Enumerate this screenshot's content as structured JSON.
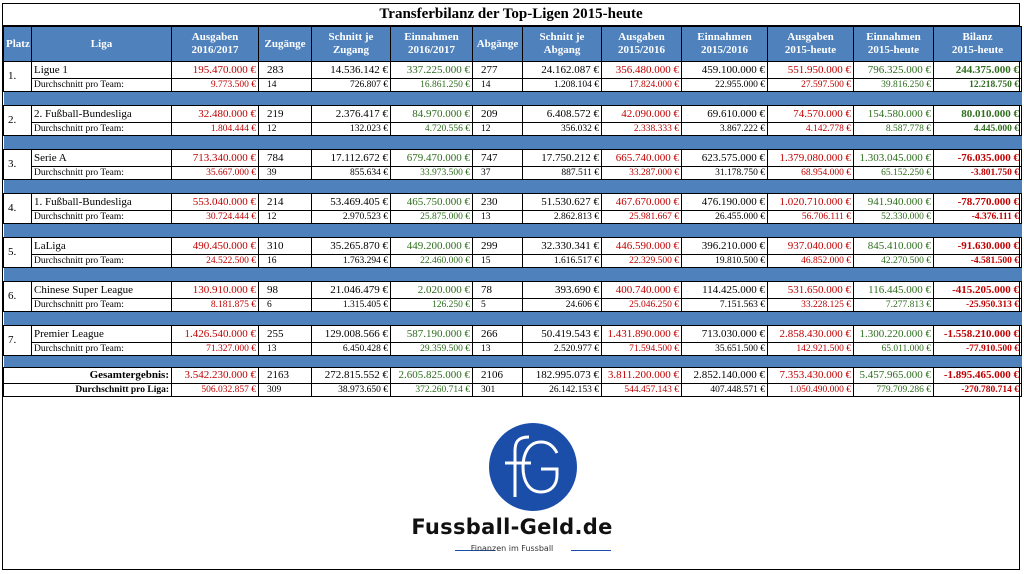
{
  "title": "Transferbilanz der Top-Ligen 2015-heute",
  "headers": {
    "platz": "Platz",
    "liga": "Liga",
    "ausgaben_1617": [
      "Ausgaben",
      "2016/2017"
    ],
    "zugaenge": "Zugänge",
    "schnitt_zugang": [
      "Schnitt je",
      "Zugang"
    ],
    "einnahmen_1617": [
      "Einnahmen",
      "2016/2017"
    ],
    "abgaenge": "Abgänge",
    "schnitt_abgang": [
      "Schnitt je",
      "Abgang"
    ],
    "ausgaben_1516": [
      "Ausgaben",
      "2015/2016"
    ],
    "einnahmen_1516": [
      "Einnahmen",
      "2015/2016"
    ],
    "ausgaben_heute": [
      "Ausgaben",
      "2015-heute"
    ],
    "einnahmen_heute": [
      "Einnahmen",
      "2015-heute"
    ],
    "bilanz": [
      "Bilanz",
      "2015-heute"
    ]
  },
  "avg_label": "Durchschnitt pro Team:",
  "rows": [
    {
      "platz": "1.",
      "liga": "Ligue 1",
      "main": [
        "195.470.000 €",
        "283",
        "14.536.142 €",
        "337.225.000 €",
        "277",
        "24.162.087 €",
        "356.480.000 €",
        "459.100.000 €",
        "551.950.000 €",
        "796.325.000 €",
        "244.375.000 €"
      ],
      "avg": [
        "9.773.500 €",
        "14",
        "726.807 €",
        "16.861.250 €",
        "14",
        "1.208.104 €",
        "17.824.000 €",
        "22.955.000 €",
        "27.597.500 €",
        "39.816.250 €",
        "12.218.750 €"
      ],
      "bilanz_sign": "pos"
    },
    {
      "platz": "2.",
      "liga": "2. Fußball-Bundesliga",
      "main": [
        "32.480.000 €",
        "219",
        "2.376.417 €",
        "84.970.000 €",
        "209",
        "6.408.572 €",
        "42.090.000 €",
        "69.610.000 €",
        "74.570.000 €",
        "154.580.000 €",
        "80.010.000 €"
      ],
      "avg": [
        "1.804.444 €",
        "12",
        "132.023 €",
        "4.720.556 €",
        "12",
        "356.032 €",
        "2.338.333 €",
        "3.867.222 €",
        "4.142.778 €",
        "8.587.778 €",
        "4.445.000 €"
      ],
      "bilanz_sign": "pos"
    },
    {
      "platz": "3.",
      "liga": "Serie A",
      "main": [
        "713.340.000 €",
        "784",
        "17.112.672 €",
        "679.470.000 €",
        "747",
        "17.750.212 €",
        "665.740.000 €",
        "623.575.000 €",
        "1.379.080.000 €",
        "1.303.045.000 €",
        "-76.035.000 €"
      ],
      "avg": [
        "35.667.000 €",
        "39",
        "855.634 €",
        "33.973.500 €",
        "37",
        "887.511 €",
        "33.287.000 €",
        "31.178.750 €",
        "68.954.000 €",
        "65.152.250 €",
        "-3.801.750 €"
      ],
      "bilanz_sign": "neg"
    },
    {
      "platz": "4.",
      "liga": "1. Fußball-Bundesliga",
      "main": [
        "553.040.000 €",
        "214",
        "53.469.405 €",
        "465.750.000 €",
        "230",
        "51.530.627 €",
        "467.670.000 €",
        "476.190.000 €",
        "1.020.710.000 €",
        "941.940.000 €",
        "-78.770.000 €"
      ],
      "avg": [
        "30.724.444 €",
        "12",
        "2.970.523 €",
        "25.875.000 €",
        "13",
        "2.862.813 €",
        "25.981.667 €",
        "26.455.000 €",
        "56.706.111 €",
        "52.330.000 €",
        "-4.376.111 €"
      ],
      "bilanz_sign": "neg"
    },
    {
      "platz": "5.",
      "liga": "LaLiga",
      "main": [
        "490.450.000 €",
        "310",
        "35.265.870 €",
        "449.200.000 €",
        "299",
        "32.330.341 €",
        "446.590.000 €",
        "396.210.000 €",
        "937.040.000 €",
        "845.410.000 €",
        "-91.630.000 €"
      ],
      "avg": [
        "24.522.500 €",
        "16",
        "1.763.294 €",
        "22.460.000 €",
        "15",
        "1.616.517 €",
        "22.329.500 €",
        "19.810.500 €",
        "46.852.000 €",
        "42.270.500 €",
        "-4.581.500 €"
      ],
      "bilanz_sign": "neg"
    },
    {
      "platz": "6.",
      "liga": "Chinese Super League",
      "main": [
        "130.910.000 €",
        "98",
        "21.046.479 €",
        "2.020.000 €",
        "78",
        "393.690 €",
        "400.740.000 €",
        "114.425.000 €",
        "531.650.000 €",
        "116.445.000 €",
        "-415.205.000 €"
      ],
      "avg": [
        "8.181.875 €",
        "6",
        "1.315.405 €",
        "126.250 €",
        "5",
        "24.606 €",
        "25.046.250 €",
        "7.151.563 €",
        "33.228.125 €",
        "7.277.813 €",
        "-25.950.313 €"
      ],
      "bilanz_sign": "neg"
    },
    {
      "platz": "7.",
      "liga": "Premier League",
      "main": [
        "1.426.540.000 €",
        "255",
        "129.008.566 €",
        "587.190.000 €",
        "266",
        "50.419.543 €",
        "1.431.890.000 €",
        "713.030.000 €",
        "2.858.430.000 €",
        "1.300.220.000 €",
        "-1.558.210.000 €"
      ],
      "avg": [
        "71.327.000 €",
        "13",
        "6.450.428 €",
        "29.359.500 €",
        "13",
        "2.520.977 €",
        "71.594.500 €",
        "35.651.500 €",
        "142.921.500 €",
        "65.011.000 €",
        "-77.910.500 €"
      ],
      "bilanz_sign": "neg"
    }
  ],
  "total": {
    "label": "Gesamtergebnis:",
    "values": [
      "3.542.230.000 €",
      "2163",
      "272.815.552 €",
      "2.605.825.000 €",
      "2106",
      "182.995.073 €",
      "3.811.200.000 €",
      "2.852.140.000 €",
      "7.353.430.000 €",
      "5.457.965.000 €",
      "-1.895.465.000 €"
    ]
  },
  "avg_liga": {
    "label": "Durchschnitt pro Liga:",
    "values": [
      "506.032.857 €",
      "309",
      "38.973.650 €",
      "372.260.714 €",
      "301",
      "26.142.153 €",
      "544.457.143 €",
      "407.448.571 €",
      "1.050.490.000 €",
      "779.709.286 €",
      "-270.780.714 €"
    ]
  },
  "colors": {
    "header_bg": "#4f81bd",
    "negative": "#c00000",
    "positive": "#2e6e1e",
    "logo": "#1a4ea8"
  },
  "logo": {
    "icon": "fg-logo-icon",
    "brand": "Fussball-Geld.de",
    "tagline": "Finanzen im Fussball"
  }
}
